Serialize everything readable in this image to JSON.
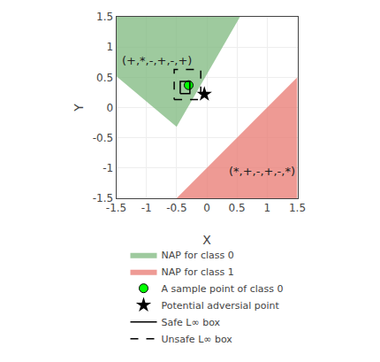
{
  "chart_data": {
    "type": "scatter",
    "xlabel": "X",
    "ylabel": "Y",
    "xlim": [
      -1.5,
      1.5
    ],
    "ylim": [
      -1.5,
      1.5
    ],
    "xticks": [
      -1.5,
      -1,
      -0.5,
      0,
      0.5,
      1,
      1.5
    ],
    "yticks": [
      -1.5,
      -1,
      -0.5,
      0,
      0.5,
      1,
      1.5
    ],
    "grid": true,
    "legend": "bottom",
    "series": [
      {
        "name": "NAP for class 0",
        "type": "area",
        "color": "#7db87d",
        "x": [
          -1.5,
          -0.5,
          0.55,
          -1.5
        ],
        "y": [
          0.52,
          -0.32,
          1.5,
          1.5
        ]
      },
      {
        "name": "NAP for class 1",
        "type": "area",
        "color": "#e87870",
        "x": [
          -0.5,
          1.5,
          1.5
        ],
        "y": [
          -1.5,
          0.5,
          -1.5
        ]
      },
      {
        "name": "A sample point of class 0",
        "type": "scatter",
        "color": "lime",
        "marker": "circle",
        "x": [
          -0.3
        ],
        "y": [
          0.37
        ]
      },
      {
        "name": "Potential adversial point",
        "type": "scatter",
        "color": "black",
        "marker": "star",
        "x": [
          -0.04
        ],
        "y": [
          0.22
        ]
      },
      {
        "name": "Safe L∞ box",
        "type": "rect",
        "color": "black",
        "line_style": "solid",
        "x": [
          -0.44,
          -0.28
        ],
        "y": [
          0.23,
          0.43
        ]
      },
      {
        "name": "Unsafe L∞ box",
        "type": "rect",
        "color": "black",
        "line_style": "dashed",
        "x": [
          -0.54,
          -0.1
        ],
        "y": [
          0.13,
          0.63
        ]
      }
    ],
    "annotations": [
      {
        "text": "(+,*,-,+,-,+)",
        "x": -0.82,
        "y": 0.78
      },
      {
        "text": "(*,+,-,+,-,*)",
        "x": 0.92,
        "y": -1.05
      }
    ]
  }
}
